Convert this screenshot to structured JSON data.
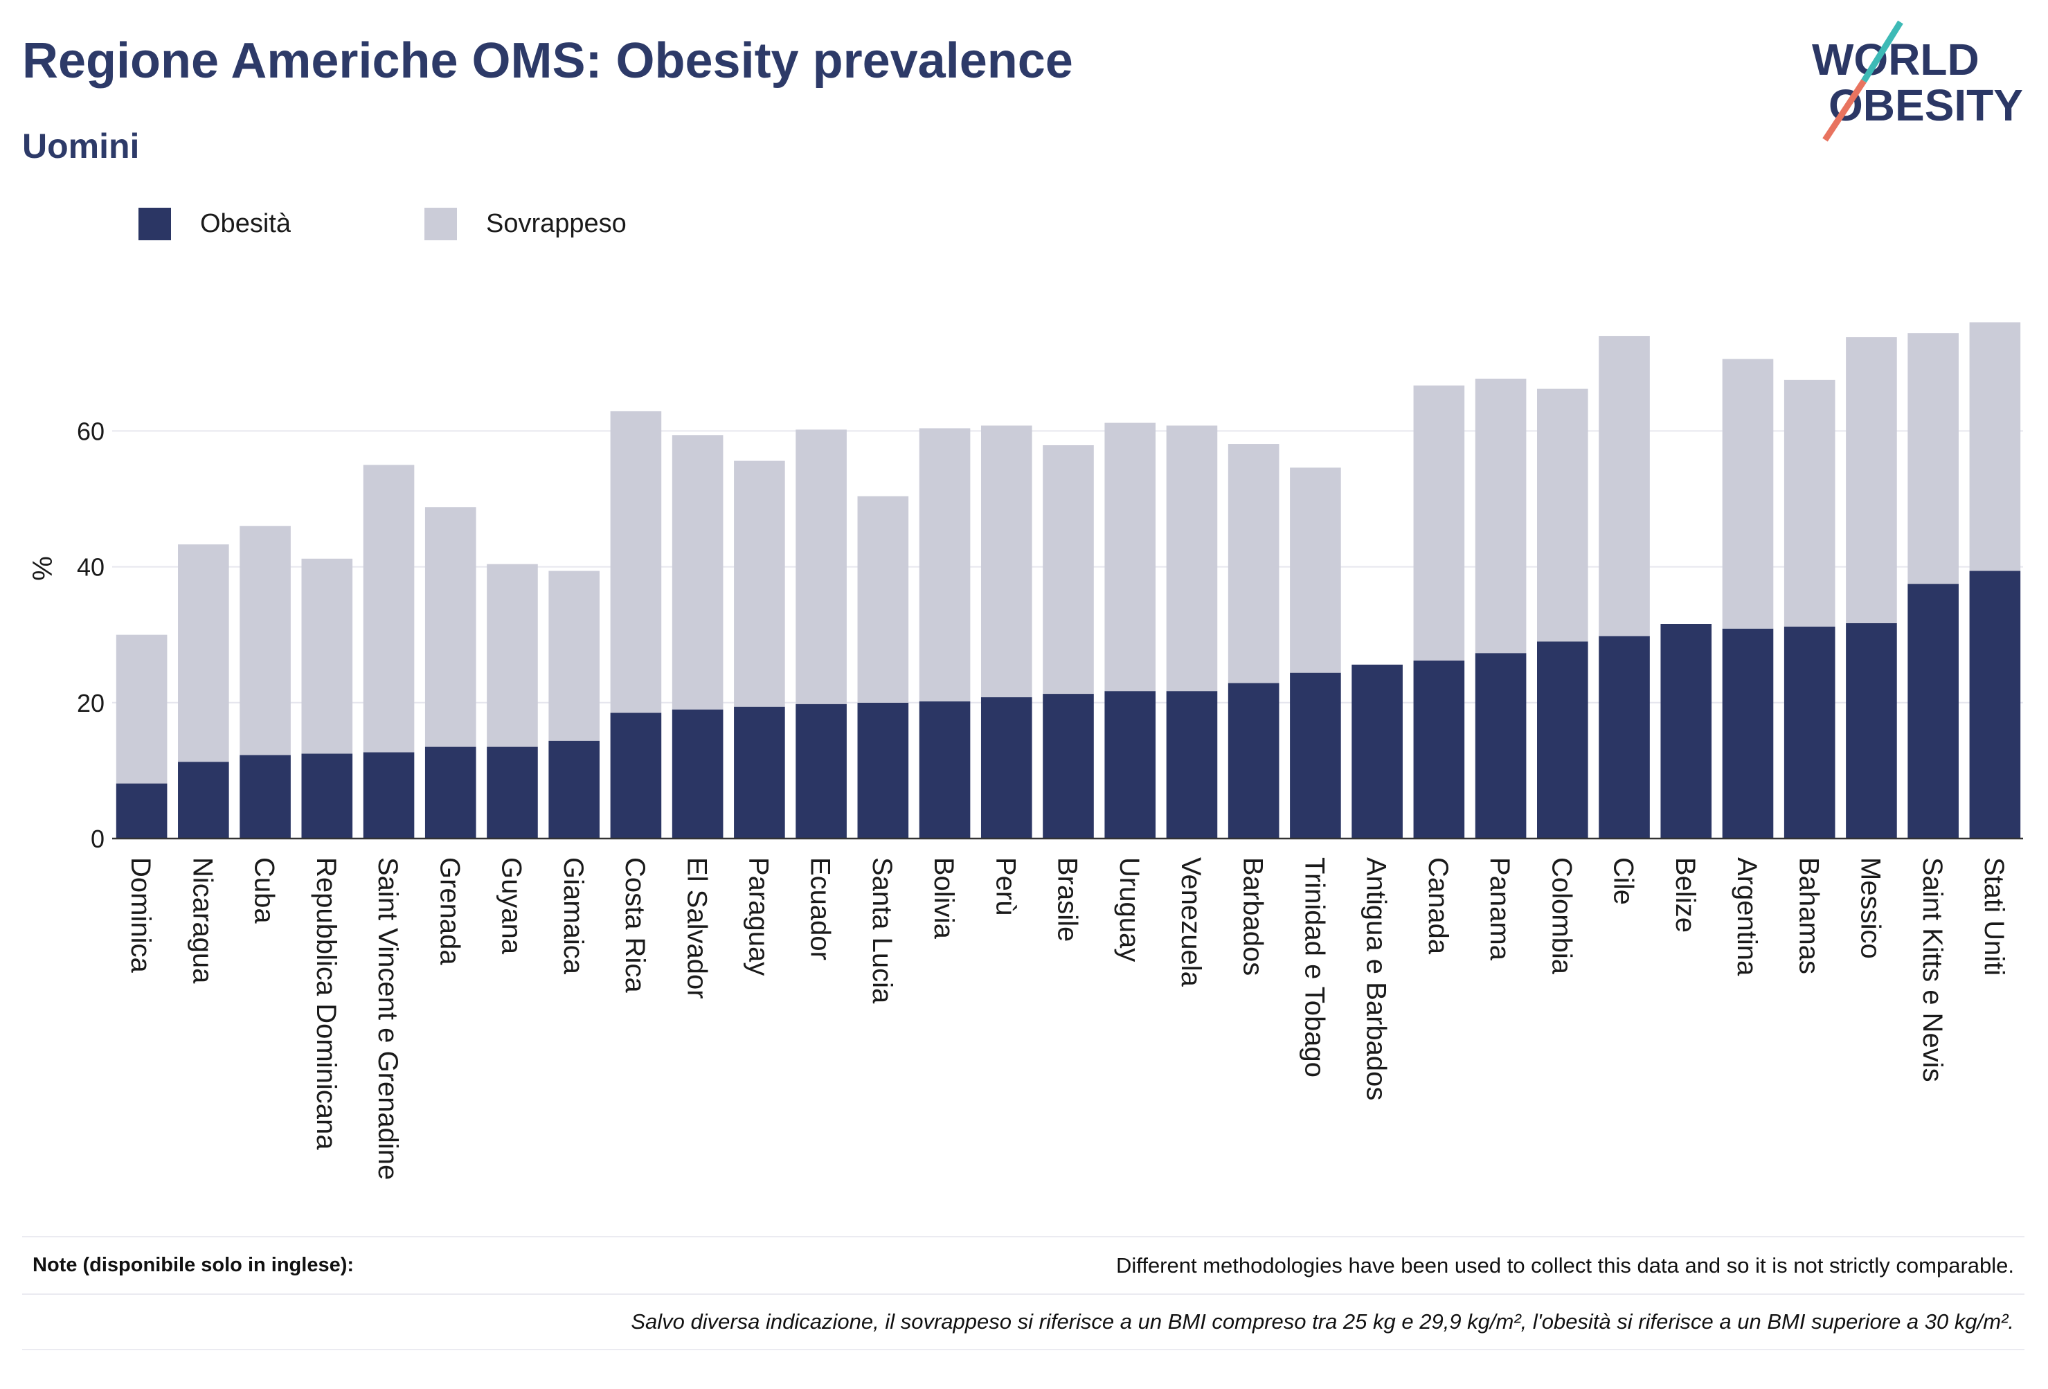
{
  "chart_data": {
    "type": "bar",
    "stacked": true,
    "title": "Regione Americhe OMS: Obesity prevalence",
    "subtitle": "Uomini",
    "ylabel": "%",
    "ylim": [
      0,
      78
    ],
    "yticks": [
      0,
      20,
      40,
      60
    ],
    "grid": true,
    "legend_position": "top-left",
    "categories": [
      "Dominica",
      "Nicaragua",
      "Cuba",
      "Repubblica Dominicana",
      "Saint Vincent e Grenadine",
      "Grenada",
      "Guyana",
      "Giamaica",
      "Costa Rica",
      "El Salvador",
      "Paraguay",
      "Ecuador",
      "Santa Lucia",
      "Bolivia",
      "Perù",
      "Brasile",
      "Uruguay",
      "Venezuela",
      "Barbados",
      "Trinidad e Tobago",
      "Antigua e Barbados",
      "Canada",
      "Panama",
      "Colombia",
      "Cile",
      "Belize",
      "Argentina",
      "Bahamas",
      "Messico",
      "Saint Kitts e Nevis",
      "Stati Uniti"
    ],
    "series": [
      {
        "name": "Obesità",
        "color": "#2b3664",
        "values": [
          8.1,
          11.3,
          12.3,
          12.5,
          12.7,
          13.5,
          13.5,
          14.4,
          18.5,
          19.0,
          19.4,
          19.8,
          20.0,
          20.2,
          20.8,
          21.3,
          21.7,
          21.7,
          22.9,
          24.4,
          25.6,
          26.2,
          27.3,
          29.0,
          29.8,
          31.6,
          30.9,
          31.2,
          31.7,
          37.5,
          39.4
        ]
      },
      {
        "name": "Sovrappeso",
        "color": "#cbccd8",
        "values": [
          21.9,
          32.0,
          33.7,
          28.7,
          42.3,
          35.3,
          26.9,
          25.0,
          44.4,
          40.4,
          36.2,
          40.4,
          30.4,
          40.2,
          40.0,
          36.6,
          39.5,
          39.1,
          35.2,
          30.2,
          null,
          40.5,
          40.4,
          37.2,
          44.2,
          null,
          39.7,
          36.3,
          42.1,
          36.9,
          36.6
        ]
      }
    ]
  },
  "logo": {
    "line1": "WORLD",
    "line2": "OBESITY",
    "text_color": "#2b3765",
    "accent_top": "#3dbab6",
    "accent_bottom": "#e8735f"
  },
  "notes": {
    "label": "Note (disponibile solo in inglese):",
    "text": "Different methodologies have been used to collect this data and so it is not strictly comparable.",
    "definition": "Salvo diversa indicazione, il sovrappeso si riferisce a un BMI compreso tra 25 kg e 29,9 kg/m², l'obesità si riferisce a un BMI superiore a 30 kg/m²."
  }
}
